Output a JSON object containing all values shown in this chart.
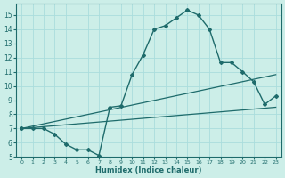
{
  "xlabel": "Humidex (Indice chaleur)",
  "background_color": "#cceee8",
  "grid_color": "#aadddd",
  "line_color": "#1e6b6b",
  "xlim": [
    -0.5,
    23.5
  ],
  "ylim": [
    5,
    15.8
  ],
  "xticks": [
    0,
    1,
    2,
    3,
    4,
    5,
    6,
    7,
    8,
    9,
    10,
    11,
    12,
    13,
    14,
    15,
    16,
    17,
    18,
    19,
    20,
    21,
    22,
    23
  ],
  "yticks": [
    5,
    6,
    7,
    8,
    9,
    10,
    11,
    12,
    13,
    14,
    15
  ],
  "line1_x": [
    0,
    1,
    2,
    3,
    4,
    5,
    6,
    7,
    8,
    9,
    10,
    11,
    12,
    13,
    14,
    15,
    16,
    17,
    18,
    19,
    20,
    21,
    22,
    23
  ],
  "line1_y": [
    7.0,
    7.0,
    7.0,
    6.6,
    5.9,
    5.5,
    5.5,
    5.1,
    8.5,
    8.6,
    10.8,
    12.2,
    14.0,
    14.25,
    14.8,
    15.35,
    15.0,
    14.0,
    11.65,
    11.65,
    11.0,
    10.3,
    8.7,
    9.3
  ],
  "line2_x": [
    0,
    23
  ],
  "line2_y": [
    7.0,
    10.8
  ],
  "line3_x": [
    0,
    23
  ],
  "line3_y": [
    7.0,
    8.5
  ]
}
